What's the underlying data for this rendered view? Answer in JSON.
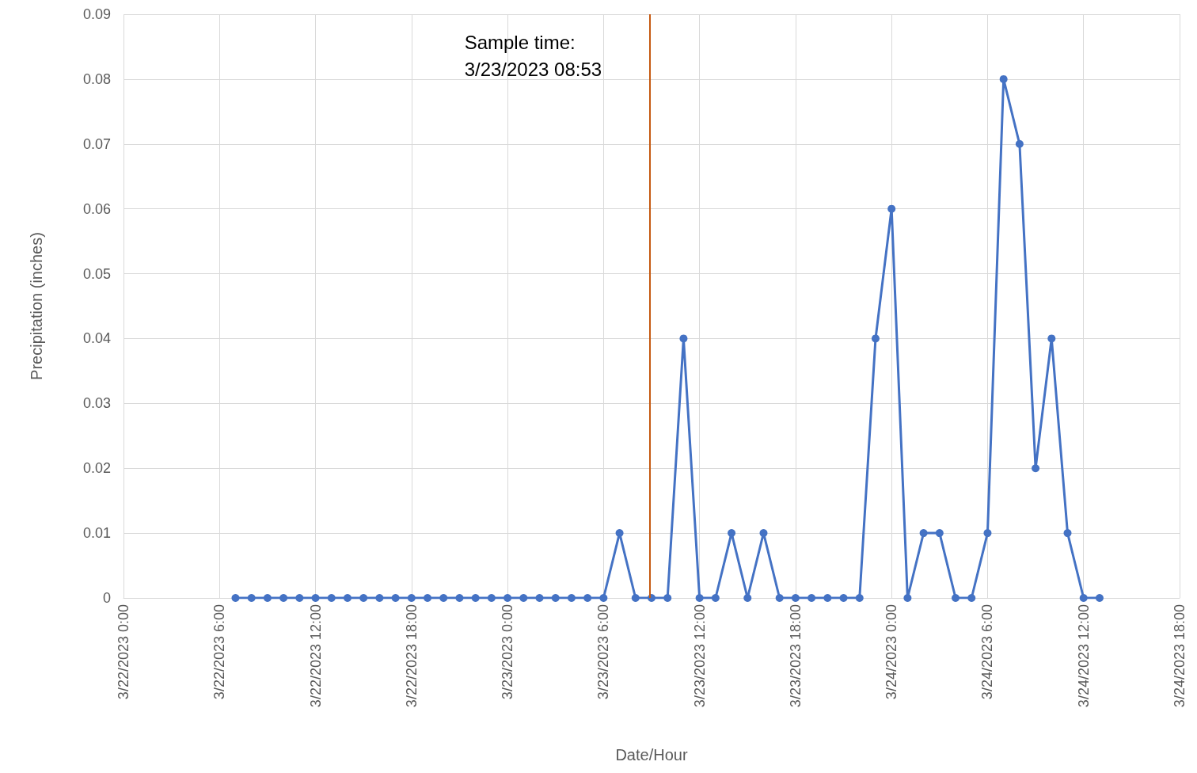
{
  "chart_data": {
    "type": "line",
    "xlabel": "Date/Hour",
    "ylabel": "Precipitation (inches)",
    "x": [
      "2023-03-22T07:00",
      "2023-03-22T08:00",
      "2023-03-22T09:00",
      "2023-03-22T10:00",
      "2023-03-22T11:00",
      "2023-03-22T12:00",
      "2023-03-22T13:00",
      "2023-03-22T14:00",
      "2023-03-22T15:00",
      "2023-03-22T16:00",
      "2023-03-22T17:00",
      "2023-03-22T18:00",
      "2023-03-22T19:00",
      "2023-03-22T20:00",
      "2023-03-22T21:00",
      "2023-03-22T22:00",
      "2023-03-22T23:00",
      "2023-03-23T00:00",
      "2023-03-23T01:00",
      "2023-03-23T02:00",
      "2023-03-23T03:00",
      "2023-03-23T04:00",
      "2023-03-23T05:00",
      "2023-03-23T06:00",
      "2023-03-23T07:00",
      "2023-03-23T08:00",
      "2023-03-23T09:00",
      "2023-03-23T10:00",
      "2023-03-23T11:00",
      "2023-03-23T12:00",
      "2023-03-23T13:00",
      "2023-03-23T14:00",
      "2023-03-23T15:00",
      "2023-03-23T16:00",
      "2023-03-23T17:00",
      "2023-03-23T18:00",
      "2023-03-23T19:00",
      "2023-03-23T20:00",
      "2023-03-23T21:00",
      "2023-03-23T22:00",
      "2023-03-23T23:00",
      "2023-03-24T00:00",
      "2023-03-24T01:00",
      "2023-03-24T02:00",
      "2023-03-24T03:00",
      "2023-03-24T04:00",
      "2023-03-24T05:00",
      "2023-03-24T06:00",
      "2023-03-24T07:00",
      "2023-03-24T08:00",
      "2023-03-24T09:00",
      "2023-03-24T10:00",
      "2023-03-24T11:00",
      "2023-03-24T12:00",
      "2023-03-24T13:00"
    ],
    "series": [
      {
        "color": "#4472c4",
        "values": [
          0,
          0,
          0,
          0,
          0,
          0,
          0,
          0,
          0,
          0,
          0,
          0,
          0,
          0,
          0,
          0,
          0,
          0,
          0,
          0,
          0,
          0,
          0,
          0,
          0.01,
          0,
          0,
          0,
          0.04,
          0,
          0,
          0.01,
          0,
          0.01,
          0,
          0,
          0,
          0,
          0,
          0,
          0.04,
          0.06,
          0,
          0.01,
          0.01,
          0,
          0,
          0.01,
          0.08,
          0.07,
          0.02,
          0.04,
          0.01,
          0,
          0
        ]
      }
    ],
    "xlim": [
      "2023-03-22T00:00",
      "2023-03-24T18:00"
    ],
    "xticks": [
      {
        "value": "2023-03-22T00:00",
        "label": "3/22/2023 0:00"
      },
      {
        "value": "2023-03-22T06:00",
        "label": "3/22/2023 6:00"
      },
      {
        "value": "2023-03-22T12:00",
        "label": "3/22/2023 12:00"
      },
      {
        "value": "2023-03-22T18:00",
        "label": "3/22/2023 18:00"
      },
      {
        "value": "2023-03-23T00:00",
        "label": "3/23/2023 0:00"
      },
      {
        "value": "2023-03-23T06:00",
        "label": "3/23/2023 6:00"
      },
      {
        "value": "2023-03-23T12:00",
        "label": "3/23/2023 12:00"
      },
      {
        "value": "2023-03-23T18:00",
        "label": "3/23/2023 18:00"
      },
      {
        "value": "2023-03-24T00:00",
        "label": "3/24/2023 0:00"
      },
      {
        "value": "2023-03-24T06:00",
        "label": "3/24/2023 6:00"
      },
      {
        "value": "2023-03-24T12:00",
        "label": "3/24/2023 12:00"
      },
      {
        "value": "2023-03-24T18:00",
        "label": "3/24/2023 18:00"
      }
    ],
    "ylim": [
      0,
      0.09
    ],
    "yticks": [
      0,
      0.01,
      0.02,
      0.03,
      0.04,
      0.05,
      0.06,
      0.07,
      0.08,
      0.09
    ],
    "ref_lines": [
      {
        "axis": "x",
        "value": "2023-03-23T08:53",
        "label": "Sample time:\n3/23/2023 08:53",
        "color": "#c55a11"
      }
    ],
    "grid": true,
    "marker": "circle",
    "line_style": "solid"
  }
}
